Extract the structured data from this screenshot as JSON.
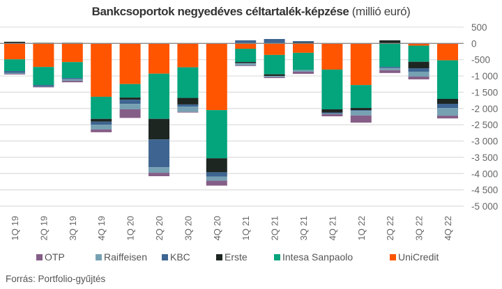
{
  "chart_data": {
    "type": "bar",
    "stacked": true,
    "title_bold": "Bankcsoportok negyedéves céltartalék-képzése",
    "title_unit": "(millió euró)",
    "xlabel": "",
    "ylabel": "",
    "ylim": [
      -5000,
      500
    ],
    "yticks": [
      500,
      0,
      -500,
      -1000,
      -1500,
      -2000,
      -2500,
      -3000,
      -3500,
      -4000,
      -4500,
      -5000
    ],
    "ytick_labels": [
      "500",
      "0",
      "-500",
      "-1 000",
      "-1 500",
      "-2 000",
      "-2 500",
      "-3 000",
      "-3 500",
      "-4 000",
      "-4 500",
      "-5 000"
    ],
    "grid": true,
    "legend_position": "bottom",
    "categories": [
      "1Q 19",
      "2Q 19",
      "3Q 19",
      "4Q 19",
      "1Q 20",
      "2Q 20",
      "3Q 20",
      "4Q 20",
      "1Q 21",
      "2Q 21",
      "3Q 21",
      "4Q 21",
      "1Q 22",
      "2Q 22",
      "3Q 22",
      "4Q 22"
    ],
    "series": [
      {
        "name": "UniCredit",
        "color": "#ff5500",
        "values": [
          -490,
          -725,
          -575,
          -1640,
          -1250,
          -930,
          -735,
          -2050,
          -165,
          -355,
          -290,
          -805,
          -1280,
          0,
          -70,
          -520
        ]
      },
      {
        "name": "Intesa Sanpaolo",
        "color": "#04a47d",
        "values": [
          -360,
          -555,
          -490,
          -680,
          -415,
          -1390,
          -940,
          -1480,
          -405,
          -595,
          -530,
          -1220,
          -705,
          -720,
          -495,
          -1185
        ]
      },
      {
        "name": "Erste",
        "color": "#1e2622",
        "values": [
          50,
          20,
          20,
          -85,
          -65,
          -630,
          -200,
          -430,
          -35,
          -50,
          35,
          -100,
          -65,
          95,
          -200,
          -150
        ]
      },
      {
        "name": "KBC",
        "color": "#3e6591",
        "values": [
          -60,
          -40,
          -30,
          -95,
          -130,
          -855,
          -65,
          -130,
          95,
          135,
          35,
          -35,
          -20,
          -35,
          -105,
          -130
        ]
      },
      {
        "name": "Raiffeisen",
        "color": "#76a1b3",
        "values": [
          -25,
          -10,
          -55,
          -145,
          -165,
          -170,
          -165,
          -130,
          -70,
          -35,
          -50,
          -15,
          -145,
          -70,
          -150,
          -235
        ]
      },
      {
        "name": "OTP",
        "color": "#855e87",
        "values": [
          -20,
          -20,
          -45,
          -85,
          -265,
          -105,
          -20,
          -150,
          -20,
          -30,
          -65,
          -65,
          -220,
          -85,
          -85,
          -85
        ]
      }
    ],
    "legend_order": [
      "OTP",
      "Raiffeisen",
      "KBC",
      "Erste",
      "Intesa Sanpaolo",
      "UniCredit"
    ]
  },
  "source": "Forrás: Portfolio-gyűjtés"
}
